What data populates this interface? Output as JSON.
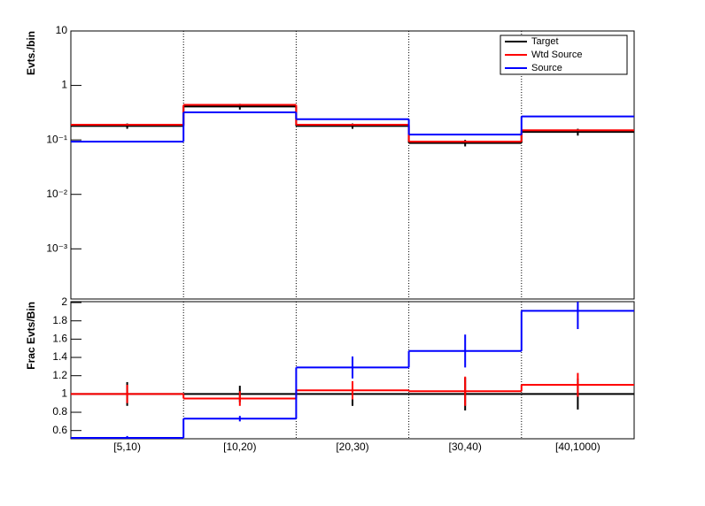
{
  "chart_data": [
    {
      "type": "step",
      "ylabel": "Evts./bin",
      "log_y": true,
      "legend": "top-right",
      "ylim": [
        0.00012,
        10
      ],
      "yticks": [
        {
          "value": 0.001,
          "label": "10⁻³"
        },
        {
          "value": 0.01,
          "label": "10⁻²"
        },
        {
          "value": 0.1,
          "label": "10⁻¹"
        },
        1,
        10
      ],
      "series": [
        {
          "name": "Target",
          "color": "#000000",
          "values": [
            0.18,
            0.41,
            0.18,
            0.088,
            0.14
          ],
          "errors": [
            0.02,
            0.05,
            0.02,
            0.012,
            0.02
          ]
        },
        {
          "name": "Wtd Source",
          "color": "#ff0000",
          "values": [
            0.19,
            0.44,
            0.19,
            0.093,
            0.15
          ]
        },
        {
          "name": "Source",
          "color": "#0000ff",
          "values": [
            0.093,
            0.32,
            0.24,
            0.125,
            0.27
          ]
        }
      ]
    },
    {
      "type": "step",
      "ylabel": "Frac Evts/Bin",
      "log_y": false,
      "categories": [
        "[5,10)",
        "[10,20)",
        "[20,30)",
        "[30,40)",
        "[40,1000)"
      ],
      "ylim": [
        0.51,
        2.01
      ],
      "yticks": [
        0.6,
        0.8,
        1,
        1.2,
        1.4,
        1.6,
        1.8,
        2
      ],
      "series": [
        {
          "color": "#000000",
          "values": [
            1,
            1,
            1,
            1,
            1
          ],
          "errors": [
            0.13,
            0.09,
            0.13,
            0.18,
            0.17
          ]
        },
        {
          "color": "#ff0000",
          "values": [
            1.0,
            0.95,
            1.04,
            1.03,
            1.1
          ],
          "errors": [
            0.1,
            0.08,
            0.1,
            0.16,
            0.13
          ]
        },
        {
          "color": "#0000ff",
          "values": [
            0.52,
            0.73,
            1.29,
            1.47,
            1.91
          ],
          "errors": [
            0.02,
            0.03,
            0.12,
            0.18,
            0.2
          ]
        }
      ]
    }
  ]
}
